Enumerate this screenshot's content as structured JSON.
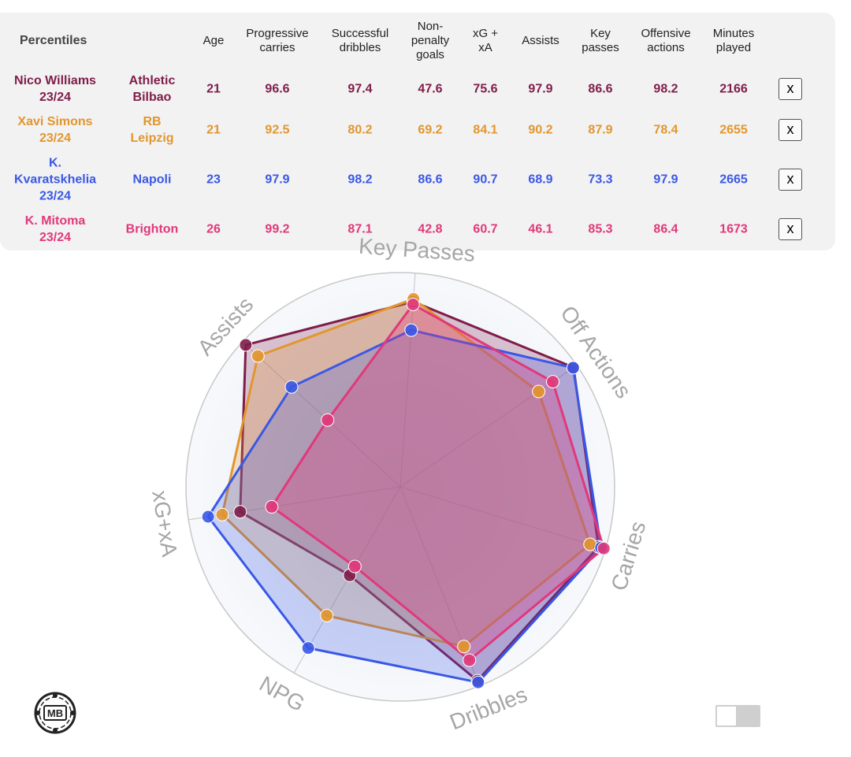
{
  "table": {
    "corner_label": "Percentiles",
    "headers": [
      "Age",
      "Progressive\ncarries",
      "Successful\ndribbles",
      "Non-\npenalty\ngoals",
      "xG +\nxA",
      "Assists",
      "Key\npasses",
      "Offensive\nactions",
      "Minutes\nplayed"
    ],
    "remove_label": "x",
    "rows": [
      {
        "player": "Nico Williams\n23/24",
        "team": "Athletic\nBilbao",
        "color": "#7f1d4a",
        "values": [
          "21",
          "96.6",
          "97.4",
          "47.6",
          "75.6",
          "97.9",
          "86.6",
          "98.2",
          "2166"
        ]
      },
      {
        "player": "Xavi Simons\n23/24",
        "team": "RB\nLeipzig",
        "color": "#e2962e",
        "values": [
          "21",
          "92.5",
          "80.2",
          "69.2",
          "84.1",
          "90.2",
          "87.9",
          "78.4",
          "2655"
        ]
      },
      {
        "player": "K.\nKvaratskhelia\n23/24",
        "team": "Napoli",
        "color": "#3a58e6",
        "values": [
          "23",
          "97.9",
          "98.2",
          "86.6",
          "90.7",
          "68.9",
          "73.3",
          "97.9",
          "2665"
        ]
      },
      {
        "player": "K. Mitoma\n23/24",
        "team": "Brighton",
        "color": "#e0397a",
        "values": [
          "26",
          "99.2",
          "87.1",
          "42.8",
          "60.7",
          "46.1",
          "85.3",
          "86.4",
          "1673"
        ]
      }
    ]
  },
  "chart_data": {
    "type": "radar",
    "axes": [
      "Key Passes",
      "Off Actions",
      "Carries",
      "Dribbles",
      "NPG",
      "xG+xA",
      "Assists"
    ],
    "range": [
      0,
      100
    ],
    "series": [
      {
        "name": "Nico Williams 23/24",
        "color": "#7f1d4a",
        "fill_opacity": 0.25,
        "values": [
          86.6,
          98.2,
          96.6,
          97.4,
          47.6,
          75.6,
          97.9
        ]
      },
      {
        "name": "Xavi Simons 23/24",
        "color": "#e2962e",
        "fill_opacity": 0.25,
        "values": [
          87.9,
          78.4,
          92.5,
          80.2,
          69.2,
          84.1,
          90.2
        ]
      },
      {
        "name": "K. Kvaratskhelia 23/24",
        "color": "#3a58e6",
        "fill_opacity": 0.25,
        "values": [
          73.3,
          97.9,
          97.9,
          98.2,
          86.6,
          90.7,
          68.9
        ]
      },
      {
        "name": "K. Mitoma 23/24",
        "color": "#e0397a",
        "fill_opacity": 0.3,
        "values": [
          85.3,
          86.4,
          99.2,
          87.1,
          42.8,
          60.7,
          46.1
        ]
      }
    ]
  },
  "logo": {
    "text": "MB",
    "icon": "mb-logo-icon"
  },
  "toggle": {
    "state": "off"
  }
}
